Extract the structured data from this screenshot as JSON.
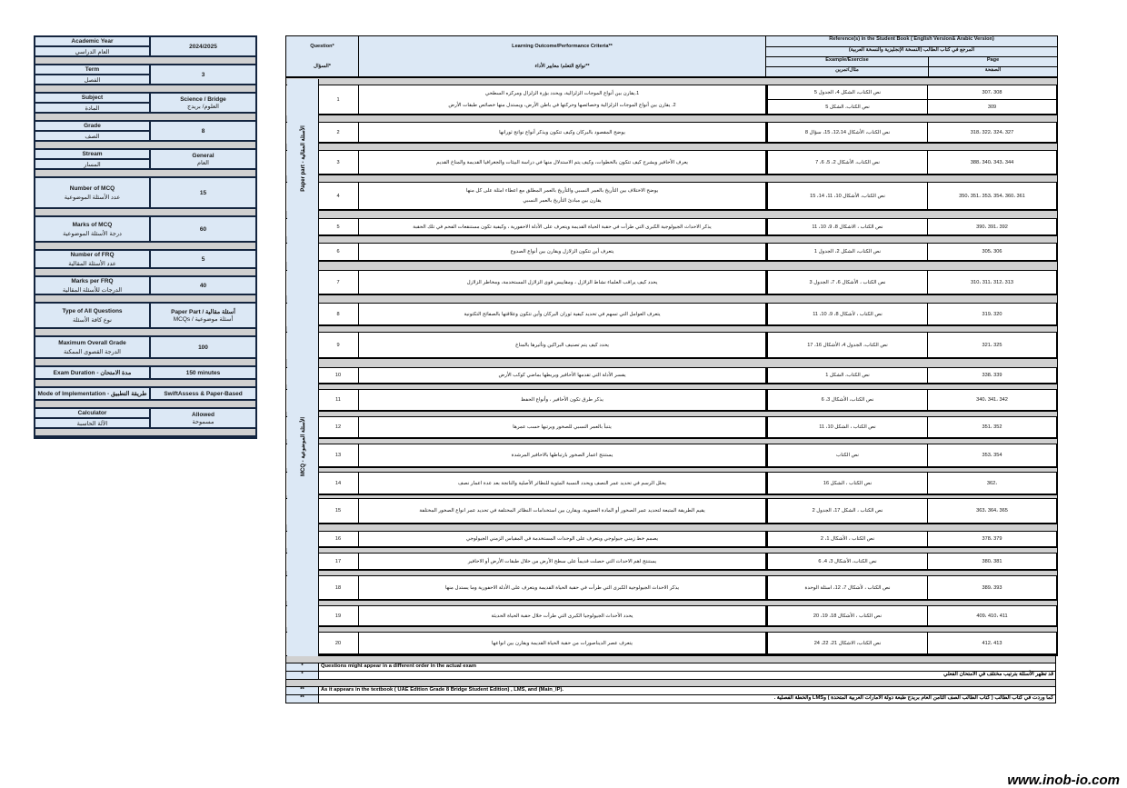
{
  "info": [
    {
      "en": "Academic Year",
      "ar": "العام الدراسي",
      "value": "2024/2025"
    },
    {
      "en": "Term",
      "ar": "الفصل",
      "value": "3"
    },
    {
      "en": "Subject",
      "ar": "المادة",
      "value": "Science / Bridge",
      "value_ar": "العلوم/ بريدج"
    },
    {
      "en": "Grade",
      "ar": "الصف",
      "value": "8"
    },
    {
      "en": "Stream",
      "ar": "المسار",
      "value": "General",
      "value_ar": "العام"
    },
    {
      "en": "Number of MCQ",
      "ar": "عدد الأسئلة الموضوعية",
      "value": "15"
    },
    {
      "en": "Marks of MCQ",
      "ar": "درجة الأسئلة الموضوعية",
      "value": "60"
    },
    {
      "en": "Number of FRQ",
      "ar": "عدد الأسئلة المقالية",
      "value": "5"
    },
    {
      "en": "Marks per FRQ",
      "ar": "الدرجات للأسئلة المقالية",
      "value": "40"
    },
    {
      "en": "Type of All Questions",
      "ar": "نوع كافة الأسئلة",
      "value": "Paper Part / أسئلة مقالية",
      "value_ar": "MCQs / أسئلة موضوعية"
    },
    {
      "en": "Maximum Overall Grade",
      "ar": "الدرجة القصوى الممكنة",
      "value": "100"
    },
    {
      "en": "Exam Duration - مدة الامتحان",
      "value": "150 minutes"
    },
    {
      "en": "Mode of Implementation - طريقة التطبيق",
      "value": "SwiftAssess & Paper-Based"
    },
    {
      "en": "Calculator",
      "ar": "الآلة الحاسبة",
      "value": "Allowed",
      "value_ar": "مسموحة"
    }
  ],
  "header": {
    "question": "Question*",
    "question_ar": "السؤال*",
    "outcome": "Learning Outcome/Performance Criteria**",
    "outcome_ar": "نواتج التعلم/ معايير الأداء**",
    "reference": "Reference(s) in the Student Book ( English Version& Arabic Version)",
    "reference_ar": "المرجع في كتاب الطالب (النسخة الإنجليزية والنسخة العربية)",
    "example": "Example/Exercise",
    "example_ar": "مثال/تمرين",
    "page": "Page",
    "page_ar": "الصفحة"
  },
  "sections": {
    "paper": "Paper part - الأسئلة المقالية",
    "mcq": "MCQ - الأسئلة الموضوعية"
  },
  "rows": [
    {
      "n": "1",
      "out": [
        "1.يقارن بين أنواع الموجات الزلزالية، ويحدد بؤرة الزلزال ومركزه السطحي",
        "2. يقارن بين أنواع الموجات الزلزالية وخصائصها وحركتها في باطن الأرض، ويستدل منها خصائص طبقات الأرض"
      ],
      "ex": [
        "نص الكتاب، الشكل 4، الجدول 5",
        "نص الكتاب، الشكل 5"
      ],
      "pg": [
        "307، 308",
        "309"
      ]
    },
    {
      "n": "2",
      "out": [
        "يوضح المقصود بالبركان وكيف تتكون ويذكر أنواع نواتج ثورانها"
      ],
      "ex": [
        "نص الكتاب، الأشكال 12،14، 15، سؤال 8"
      ],
      "pg": [
        "318، 322، 324، 327"
      ]
    },
    {
      "n": "3",
      "out": [
        "يعرف الأحافير ويشرح كيف تتكون بالخطوات، وكيف يتم الاستدلال منها في دراسة البيئات والجغرافيا القديمة والمناخ القديم"
      ],
      "ex": [
        "نص الكتاب، الأشكال 2، 5، 6، 7"
      ],
      "pg": [
        "388، 340، 343، 344"
      ]
    },
    {
      "n": "4",
      "out": [
        "يوضح الاختلاف بين التأريخ بالعمر النسبي والتأريخ بالعمر المطلق مع اعطاء امثلة على كل منها",
        "يقارن بين مبادئ التأريخ بالعمر النسبي"
      ],
      "ex": [
        "نص الكتاب، الأشكال 10، 11، 14، 15"
      ],
      "pg": [
        "350، 351، 353، 354، 360، 361"
      ]
    },
    {
      "n": "5",
      "out": [
        "يذكر الاحداث الجيولوجية الكبرى التي طرأت في حقبة الحياة القديمة ويتعرف على الأدلة الاحفورية ، وكيفية تكون مستنقعات الفحم في تلك الحقبة"
      ],
      "ex": [
        "نص الكتاب ، الاشكال 8، 9، 10، 11"
      ],
      "pg": [
        "390، 391، 392"
      ]
    },
    {
      "n": "6",
      "out": [
        "يتعرف أين تتكون الزلازل ويقارن بين أنواع الصدوع"
      ],
      "ex": [
        "نص الكتاب، الشكل 2، الجدول 1"
      ],
      "pg": [
        "305، 306"
      ]
    },
    {
      "n": "7",
      "out": [
        "يحدد كيف يراقب العلماء نشاط الزلازل ، ومقاييس قوى الزلازل المستخدمة، ومخاطر الزلازل"
      ],
      "ex": [
        "نص الكتاب ، الأشكال 6، 7، الجدول 3"
      ],
      "pg": [
        "310، 311، 312، 313"
      ]
    },
    {
      "n": "8",
      "out": [
        "يتعرف العوامل التي تسهم في تحديد كيفية ثوران البركان وأين تتكون وعلاقتها بالصفائح التكتونية"
      ],
      "ex": [
        "نص الكتاب ، لأشكال 8، 9، 10، 11"
      ],
      "pg": [
        "319، 320"
      ]
    },
    {
      "n": "9",
      "out": [
        "يحدد كيف يتم تصنيف البراكين وتأثيرها بالمناخ"
      ],
      "ex": [
        "نص الكتاب، الجدول 4، الأشكال 16، 17"
      ],
      "pg": [
        "321، 325"
      ]
    },
    {
      "n": "10",
      "out": [
        "يفسر الأدلة التي تقدمها الأحافير ويربطها بماضي كوكب الأرض"
      ],
      "ex": [
        "نص الكتاب، الشكل 1"
      ],
      "pg": [
        "338، 339"
      ]
    },
    {
      "n": "11",
      "out": [
        "يذكر طرق تكون الأحافير ، وأنواع الحفظ"
      ],
      "ex": [
        "نص الكتاب، الأشكال 3، 6"
      ],
      "pg": [
        "340، 341، 342"
      ]
    },
    {
      "n": "12",
      "out": [
        "يتنبأ بالعمر النسبي للصخور ويرتبها حسب عمرها"
      ],
      "ex": [
        "نص الكتاب ، الشكل 10، 11"
      ],
      "pg": [
        "351، 352"
      ]
    },
    {
      "n": "13",
      "out": [
        "يستنتج اعمار الصخور بارتباطها بالاحافير المرشدة"
      ],
      "ex": [
        "نص الكتاب"
      ],
      "pg": [
        "353، 354"
      ]
    },
    {
      "n": "14",
      "out": [
        "يحلل الرسم في تحديد عمر النصف ويحدد النسبة المئوية للنظائر الأصلية والناتجة بعد عدة اعمار نصف"
      ],
      "ex": [
        "نص الكتاب ، الشكل 16"
      ],
      "pg": [
        "362،"
      ]
    },
    {
      "n": "15",
      "out": [
        "يقيم الطريقة المتبعة لتحديد عمر الصخور أو المادة العضوية، ويقارن بين استخدامات النظائر المختلفة في تحديد عمر انواع الصخور المختلفة"
      ],
      "ex": [
        "نص الكتاب ، الشكل 17، الجدول 2"
      ],
      "pg": [
        "363، 364، 365"
      ]
    },
    {
      "n": "16",
      "out": [
        "يصمم خط زمني جيولوجي ويتعرف على الوحدات المستخدمة في المقياس الزمني الجيولوجي"
      ],
      "ex": [
        "نص الكتاب ، الأشكال 1، 2"
      ],
      "pg": [
        "378، 379"
      ]
    },
    {
      "n": "17",
      "out": [
        "يستنتج اهم الاحداث التي حصلت قديماً على سطح الأرض من خلال طبقات الأرض أو الاحافير"
      ],
      "ex": [
        "نص الكتاب، الأشكال 3، 4، 6"
      ],
      "pg": [
        "380، 381"
      ]
    },
    {
      "n": "18",
      "out": [
        "يذكر الاحداث الجيولوجية الكبرى التي طرأت في حقبة الحياة القديمة ويتعرف على الأدلة الاحفورية وما يستدل منها"
      ],
      "ex": [
        "نص الكتاب ، لأشكال 7، 12، اسئلة الوحدة"
      ],
      "pg": [
        "389، 393"
      ]
    },
    {
      "n": "19",
      "out": [
        "يحدد الأحداث الجيولوجيا الكبرى التي طرأت خلال حقبة الحياة الحديثة"
      ],
      "ex": [
        "نص الكتاب ، الأشكال 18، 19، 20"
      ],
      "pg": [
        "409، 410، 411"
      ]
    },
    {
      "n": "20",
      "out": [
        "يتعرف عصر الديناصورات من حقبة الحياة القديمة ويقارن بين انواعها"
      ],
      "ex": [
        "نص الكتاب، الاشكال 21، 22، 24"
      ],
      "pg": [
        "412، 413"
      ]
    }
  ],
  "footer": [
    {
      "mark": "*",
      "text": "Questions might appear in a different order in the actual exam",
      "rtl": false
    },
    {
      "mark": "*",
      "text": "قد تظهر الأسئلة بترتيب مختلف في الامتحان الفعلي",
      "rtl": true
    },
    {
      "mark": "**",
      "text": "As it appears in the textbook ( UAE Edition Grade 8 Bridge Student Edition) , LMS, and (Main_IP).",
      "rtl": false
    },
    {
      "mark": "**",
      "text": "كما وردت في كتاب الطالب ( كتاب الطالب الصف الثامن العام بريدج طبعة دولة الامارات العربية المتحدة ) وLMS والخطة الفصلية .",
      "rtl": true
    }
  ],
  "watermark": "www.inob-io.com"
}
